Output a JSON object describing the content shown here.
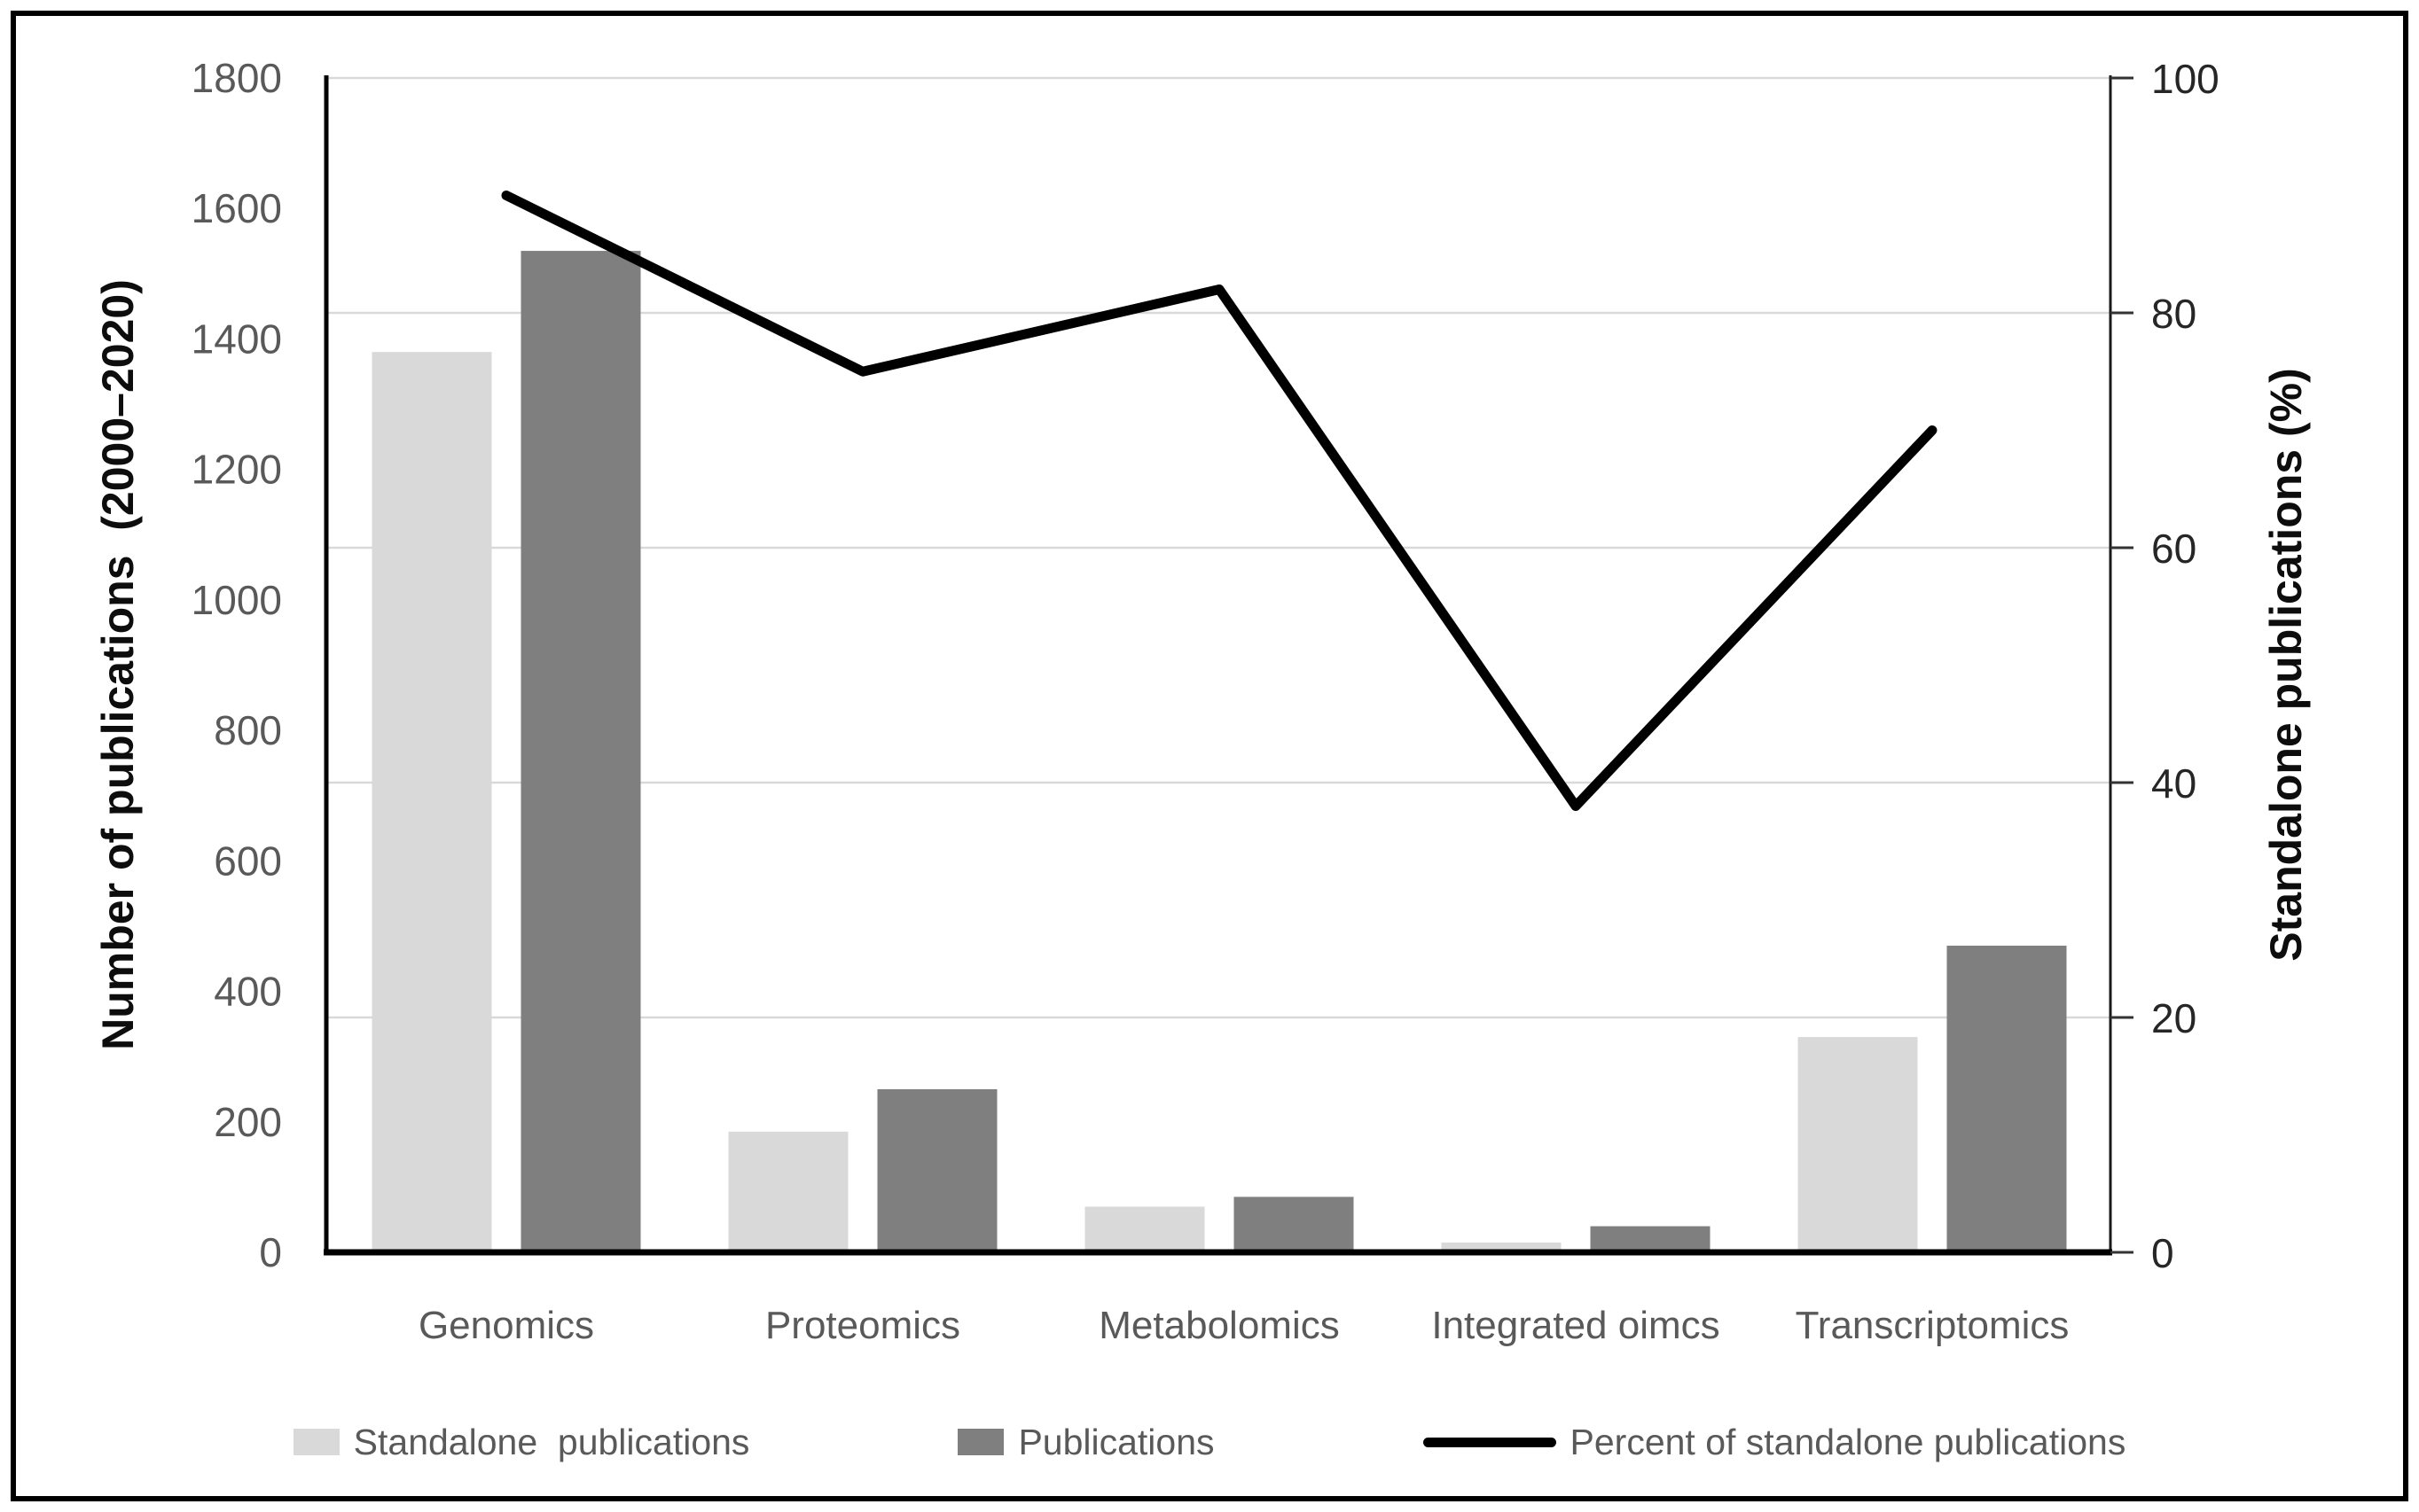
{
  "chart_data": {
    "type": "combo-bar-line",
    "title": "",
    "categories": [
      "Genomics",
      "Proteomics",
      "Metabolomics",
      "Integrated oimcs",
      "Transcriptomics"
    ],
    "bar_series": [
      {
        "name": "Standalone  publications",
        "values": [
          1380,
          185,
          70,
          15,
          330
        ],
        "color": "#d9d9d9",
        "axis": "left"
      },
      {
        "name": "Publications",
        "values": [
          1535,
          250,
          85,
          40,
          470
        ],
        "color": "#7f7f7f",
        "axis": "left"
      }
    ],
    "line_series": {
      "name": "Percent of standalone publications",
      "values": [
        90,
        75,
        82,
        38,
        70
      ],
      "color": "#000000",
      "axis": "right"
    },
    "left_axis": {
      "label": "Number of publications  (2000–2020)",
      "min": 0,
      "max": 1800,
      "ticks": [
        0,
        200,
        400,
        600,
        800,
        1000,
        1200,
        1400,
        1600,
        1800
      ]
    },
    "right_axis": {
      "label": "Standalone publications (%)",
      "min": 0,
      "max": 100,
      "ticks": [
        0,
        20,
        40,
        60,
        80,
        100
      ]
    },
    "grid": "horizontal gridlines at every 20 units of right axis",
    "legend_position": "bottom",
    "colors": {
      "gridline": "#d9d9d9",
      "axis": "#000000",
      "tick_label_left": "#595959",
      "tick_label_right": "#262626",
      "category_label": "#595959",
      "figure_border": "#000000"
    }
  }
}
